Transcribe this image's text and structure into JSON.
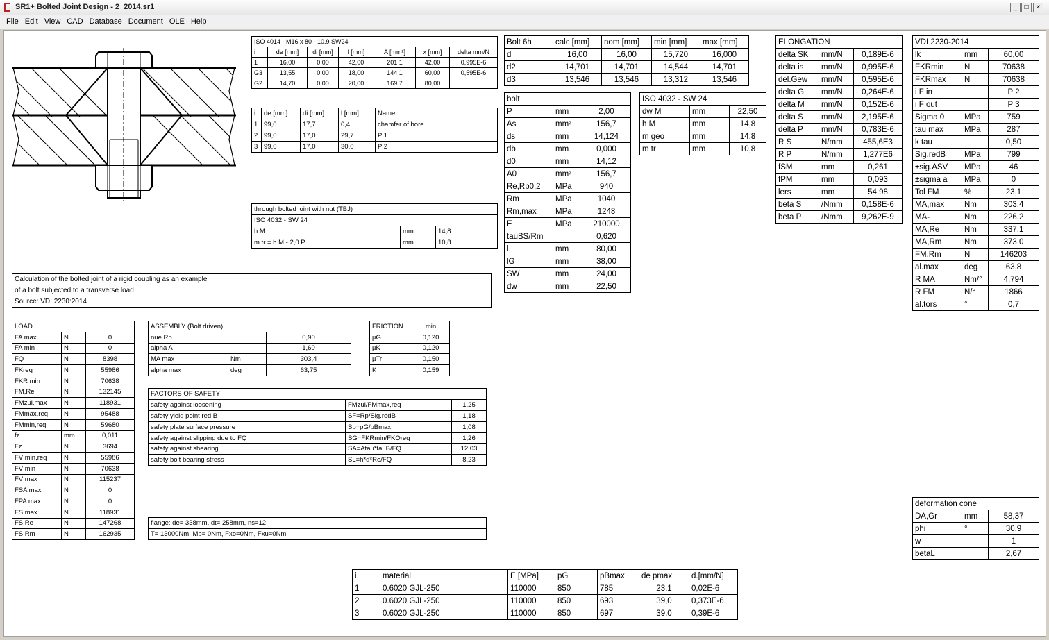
{
  "window": {
    "title": "SR1+  Bolted Joint Design  -  2_2014.sr1"
  },
  "menu": [
    "File",
    "Edit",
    "View",
    "CAD",
    "Database",
    "Document",
    "OLE",
    "Help"
  ],
  "tables": {
    "iso4014": {
      "rows": [
        [
          "ISO 4014 - M16 x 80 - 10.9 SW24"
        ],
        [
          "i",
          "de [mm]",
          "di [mm]",
          "l [mm]",
          "A [mm²]",
          "x [mm]",
          "delta mm/N"
        ],
        [
          "1",
          "16,00",
          "0,00",
          "42,00",
          "201,1",
          "42,00",
          "0,995E-6"
        ],
        [
          "G3",
          "13,55",
          "0,00",
          "18,00",
          "144,1",
          "60,00",
          "0,595E-6"
        ],
        [
          "G2",
          "14,70",
          "0,00",
          "20,00",
          "169,7",
          "80,00"
        ]
      ]
    },
    "sections": {
      "rows": [
        [
          "i",
          "de [mm]",
          "di [mm]",
          "l [mm]",
          "Name"
        ],
        [
          "1",
          "99,0",
          "17,7",
          "0,4",
          "chamfer of bore"
        ],
        [
          "2",
          "99,0",
          "17,0",
          "29,7",
          "P 1"
        ],
        [
          "3",
          "99,0",
          "17,0",
          "30,0",
          "P 2"
        ]
      ]
    },
    "tbj": {
      "rows": [
        [
          "through bolted joint with nut (TBJ)"
        ],
        [
          "ISO 4032 - SW 24"
        ],
        [
          "h M",
          "mm",
          "14,8"
        ],
        [
          "m tr   =  h M - 2,0 P",
          "mm",
          "10,8"
        ]
      ]
    },
    "description": {
      "rows": [
        [
          "Calculation of the bolted joint of a rigid coupling as an example"
        ],
        [
          "of a bolt subjected to a transverse load"
        ],
        [
          "Source: VDI 2230:2014"
        ]
      ]
    },
    "load": {
      "rows": [
        [
          "LOAD"
        ],
        [
          "FA max",
          "N",
          "0"
        ],
        [
          "FA min",
          "N",
          "0"
        ],
        [
          "FQ",
          "N",
          "8398"
        ],
        [
          "FKreq",
          "N",
          "55986"
        ],
        [
          "FKR min",
          "N",
          "70638"
        ],
        [
          "FM,Re",
          "N",
          "132145"
        ],
        [
          "FMzul,max",
          "N",
          "118931"
        ],
        [
          "FMmax,req",
          "N",
          "95488"
        ],
        [
          "FMmin,req",
          "N",
          "59680"
        ],
        [
          "fz",
          "mm",
          "0,011"
        ],
        [
          "Fz",
          "N",
          "3694"
        ],
        [
          "FV min,req",
          "N",
          "55986"
        ],
        [
          "FV min",
          "N",
          "70638"
        ],
        [
          "FV max",
          "N",
          "115237"
        ],
        [
          "FSA max",
          "N",
          "0"
        ],
        [
          "FPA max",
          "N",
          "0"
        ],
        [
          "FS max",
          "N",
          "118931"
        ],
        [
          "FS,Re",
          "N",
          "147268"
        ],
        [
          "FS,Rm",
          "N",
          "162935"
        ]
      ]
    },
    "assembly": {
      "rows": [
        [
          "ASSEMBLY (Bolt driven)"
        ],
        [
          "nue Rp",
          null,
          "0,90"
        ],
        [
          "alpha A",
          null,
          "1,60"
        ],
        [
          "MA max",
          "Nm",
          "303,4"
        ],
        [
          "alpha max",
          "deg",
          "63,75"
        ]
      ]
    },
    "friction": {
      "rows": [
        [
          "FRICTION",
          "min"
        ],
        [
          "µG",
          "0,120"
        ],
        [
          "µK",
          "0,120"
        ],
        [
          "µTr",
          "0,150"
        ],
        [
          "K",
          "0,159"
        ]
      ]
    },
    "safety": {
      "rows": [
        [
          "FACTORS OF SAFETY"
        ],
        [
          "safety against loosening",
          "FMzul/FMmax,req",
          "1,25"
        ],
        [
          "safety yield point red.B",
          "SF=Rp/Sig.redB",
          "1,18"
        ],
        [
          "safety plate surface pressure",
          "Sp=pG/pBmax",
          "1,08"
        ],
        [
          "safety against slipping due to FQ",
          "SG=FKRmin/FKQreq",
          "1,26"
        ],
        [
          "safety against shearing",
          "SA=Atau*tauB/FQ",
          "12,03"
        ],
        [
          "safety bolt bearing stress",
          "SL=h*d*Re/FQ",
          "8,23"
        ]
      ]
    },
    "flange": {
      "rows": [
        [
          "flange:  de= 338mm, dt= 258mm, ns=12"
        ],
        [
          "T= 13000Nm,  Mb= 0Nm,  Fxo=0Nm,  Fxu=0Nm"
        ]
      ]
    },
    "bolt6h": {
      "rows": [
        [
          "Bolt 6h",
          "calc [mm]",
          "nom [mm]",
          "min [mm]",
          "max [mm]"
        ],
        [
          "d",
          "16,00",
          "16,00",
          "15,720",
          "16,000"
        ],
        [
          "d2",
          "14,701",
          "14,701",
          "14,544",
          "14,701"
        ],
        [
          "d3",
          "13,546",
          "13,546",
          "13,312",
          "13,546"
        ]
      ]
    },
    "bolt": {
      "rows": [
        [
          "bolt"
        ],
        [
          "P",
          "mm",
          "2,00"
        ],
        [
          "As",
          "mm²",
          "156,7"
        ],
        [
          "ds",
          "mm",
          "14,124"
        ],
        [
          "db",
          "mm",
          "0,000"
        ],
        [
          "d0",
          "mm",
          "14,12"
        ],
        [
          "A0",
          "mm²",
          "156,7"
        ],
        [
          "Re,Rp0,2",
          "MPa",
          "940"
        ],
        [
          "Rm",
          "MPa",
          "1040"
        ],
        [
          "Rm,max",
          "MPa",
          "1248"
        ],
        [
          "E",
          "MPa",
          "210000"
        ],
        [
          "tauBS/Rm",
          null,
          "0,620"
        ],
        [
          "l",
          "mm",
          "80,00"
        ],
        [
          "lG",
          "mm",
          "38,00"
        ],
        [
          "SW",
          "mm",
          "24,00"
        ],
        [
          "dw",
          "mm",
          "22,50"
        ]
      ]
    },
    "iso4032": {
      "rows": [
        [
          "ISO 4032 - SW 24"
        ],
        [
          "dw M",
          "mm",
          "22,50"
        ],
        [
          "h M",
          "mm",
          "14,8"
        ],
        [
          "m geo",
          "mm",
          "14,8"
        ],
        [
          "m tr",
          "mm",
          "10,8"
        ]
      ]
    },
    "elongation": {
      "rows": [
        [
          "ELONGATION"
        ],
        [
          "delta SK",
          "mm/N",
          "0,189E-6"
        ],
        [
          "delta is",
          "mm/N",
          "0,995E-6"
        ],
        [
          "del.Gew",
          "mm/N",
          "0,595E-6"
        ],
        [
          "delta G",
          "mm/N",
          "0,264E-6"
        ],
        [
          "delta M",
          "mm/N",
          "0,152E-6"
        ],
        [
          "delta S",
          "mm/N",
          "2,195E-6"
        ],
        [
          "delta P",
          "mm/N",
          "0,783E-6"
        ],
        [
          "R S",
          "N/mm",
          "455,6E3"
        ],
        [
          "R P",
          "N/mm",
          "1,277E6"
        ],
        [
          "fSM",
          "mm",
          "0,261"
        ],
        [
          "fPM",
          "mm",
          "0,093"
        ],
        [
          "lers",
          "mm",
          "54,98"
        ],
        [
          "beta S",
          "/Nmm",
          "0,158E-6"
        ],
        [
          "beta P",
          "/Nmm",
          "9,262E-9"
        ]
      ]
    },
    "vdi": {
      "rows": [
        [
          "VDI 2230-2014"
        ],
        [
          "lk",
          "mm",
          "60,00"
        ],
        [
          "FKRmin",
          "N",
          "70638"
        ],
        [
          "FKRmax",
          "N",
          "70638"
        ],
        [
          "i F in",
          null,
          "P 2"
        ],
        [
          "i F out",
          null,
          "P 3"
        ],
        [
          "Sigma 0",
          "MPa",
          "759"
        ],
        [
          "tau max",
          "MPa",
          "287"
        ],
        [
          "k tau",
          null,
          "0,50"
        ],
        [
          "Sig.redB",
          "MPa",
          "799"
        ],
        [
          "±sig.ASV",
          "MPa",
          "46"
        ],
        [
          "±sigma a",
          "MPa",
          "0"
        ],
        [
          "Tol FM",
          "%",
          "23,1"
        ],
        [
          "MA,max",
          "Nm",
          "303,4"
        ],
        [
          "MA-",
          "Nm",
          "226,2"
        ],
        [
          "MA,Re",
          "Nm",
          "337,1"
        ],
        [
          "MA,Rm",
          "Nm",
          "373,0"
        ],
        [
          "FM,Rm",
          "N",
          "146203"
        ],
        [
          "al.max",
          "deg",
          "63,8"
        ],
        [
          "R MA",
          "Nm/°",
          "4,794"
        ],
        [
          "R FM",
          "N/°",
          "1866"
        ],
        [
          "al.tors",
          "°",
          "0,7"
        ]
      ]
    },
    "cone": {
      "rows": [
        [
          "deformation cone"
        ],
        [
          "DA,Gr",
          "mm",
          "58,37"
        ],
        [
          "phi",
          "°",
          "30,9"
        ],
        [
          "w",
          null,
          "1"
        ],
        [
          "betaL",
          null,
          "2,67"
        ]
      ]
    },
    "material": {
      "rows": [
        [
          "i",
          "material",
          "E [MPa]",
          "pG",
          "pBmax",
          "de pmax",
          "d.[mm/N]"
        ],
        [
          "1",
          "0.6020 GJL-250",
          "110000",
          "850",
          "785",
          "23,1",
          "0,02E-6"
        ],
        [
          "2",
          "0.6020 GJL-250",
          "110000",
          "850",
          "693",
          "39,0",
          "0,373E-6"
        ],
        [
          "3",
          "0.6020 GJL-250",
          "110000",
          "850",
          "697",
          "39,0",
          "0,39E-6"
        ]
      ]
    }
  }
}
